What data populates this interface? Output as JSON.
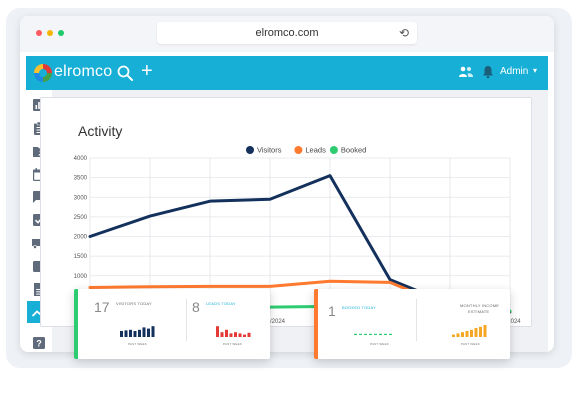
{
  "browser": {
    "url": "elromco.com",
    "reload_icon": "reload-icon"
  },
  "app": {
    "brand": "elromco",
    "header_icons": [
      "search-icon",
      "plus-icon",
      "users-icon",
      "bell-icon"
    ],
    "user_menu": "Admin",
    "sidebar_icons": [
      "reports-icon",
      "clipboard-icon",
      "contacts-folder-icon",
      "calendar-icon",
      "chat-icon",
      "checkbox-icon",
      "truck-icon",
      "wallet-icon",
      "document-icon",
      "trend-icon",
      "help-icon"
    ],
    "active_sidebar": "trend-icon",
    "accent": "#18afd6"
  },
  "page": {
    "title": "Activity"
  },
  "chart_data": {
    "type": "line",
    "title": "Activity",
    "legend": [
      "Visitors",
      "Leads",
      "Booked"
    ],
    "legend_position": "top",
    "x": [
      "",
      "",
      "",
      "07/01/2024",
      "",
      "",
      "",
      "11/2024"
    ],
    "y_ticks": [
      1000,
      1500,
      2000,
      2500,
      3000,
      3500,
      4000
    ],
    "ylim": [
      0,
      4000
    ],
    "grid": true,
    "series": [
      {
        "name": "Visitors",
        "color": "#13315c",
        "values": [
          2000,
          2520,
          2900,
          2950,
          3550,
          900,
          280,
          80
        ]
      },
      {
        "name": "Leads",
        "color": "#ff7a2f",
        "values": [
          700,
          720,
          730,
          730,
          860,
          830,
          200,
          100
        ]
      },
      {
        "name": "Booked",
        "color": "#2ecc71",
        "values": [
          180,
          190,
          200,
          200,
          220,
          210,
          150,
          100
        ]
      }
    ]
  },
  "stats": {
    "visitors_value": "17",
    "visitors_label": "VISITORS TODAY",
    "leads_value": "8",
    "leads_label": "LEADS TODAY",
    "booked_value": "1",
    "booked_label": "BOOKED TODAY",
    "income_label_1": "MONTHLY INCOME",
    "income_label_2": "ESTIMATE",
    "past_week": "PAST WEEK",
    "spark_colors": {
      "visitors": "#13315c",
      "leads": "#e53935",
      "booked": "#2ecc71",
      "income": "#f5a623"
    }
  }
}
